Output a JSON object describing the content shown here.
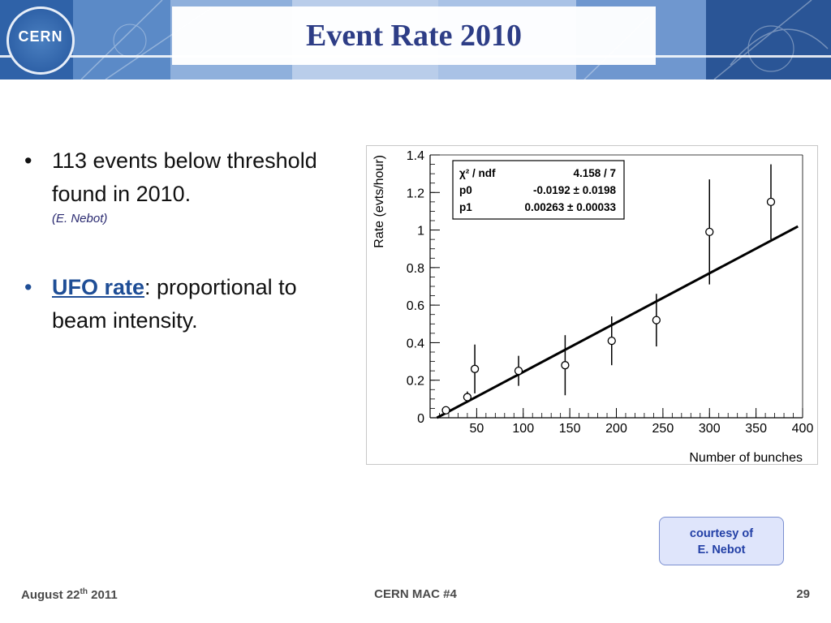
{
  "slide": {
    "title": "Event Rate 2010",
    "logo_text": "CERN"
  },
  "bullets": [
    {
      "text": "113 events below threshold found in 2010.",
      "credit": "(E. Nebot)"
    },
    {
      "highlight": "UFO rate",
      "text": ": proportional to beam intensity."
    }
  ],
  "courtesy": {
    "line1": "courtesy of",
    "line2": "E. Nebot"
  },
  "footer": {
    "date_prefix": "August 22",
    "date_sup": "th",
    "date_suffix": " 2011",
    "center": "CERN MAC #4",
    "page": "29"
  },
  "colors": {
    "title": "#2d3d86",
    "highlight": "#1f4e96",
    "courtesy_text": "#2340a6"
  },
  "chart_data": {
    "type": "scatter",
    "xlabel": "Number of bunches",
    "ylabel": "Rate (evts/hour)",
    "xlim": [
      0,
      400
    ],
    "ylim": [
      0,
      1.4
    ],
    "x_ticks": [
      50,
      100,
      150,
      200,
      250,
      300,
      350,
      400
    ],
    "y_ticks": [
      0,
      0.2,
      0.4,
      0.6,
      0.8,
      1,
      1.2,
      1.4
    ],
    "y_tick_labels": [
      "0",
      "0.2",
      "0.4",
      "0.6",
      "0.8",
      "1",
      "1.2",
      "1.4"
    ],
    "points": [
      {
        "x": 17,
        "y": 0.04,
        "err": 0.0
      },
      {
        "x": 40,
        "y": 0.11,
        "err": 0.03
      },
      {
        "x": 48,
        "y": 0.26,
        "err": 0.13
      },
      {
        "x": 95,
        "y": 0.25,
        "err": 0.08
      },
      {
        "x": 145,
        "y": 0.28,
        "err": 0.16
      },
      {
        "x": 195,
        "y": 0.41,
        "err": 0.13
      },
      {
        "x": 243,
        "y": 0.52,
        "err": 0.14
      },
      {
        "x": 300,
        "y": 0.99,
        "err": 0.28
      },
      {
        "x": 366,
        "y": 1.15,
        "err": 0.2
      }
    ],
    "fit": {
      "p0": -0.0192,
      "p1": 0.00263,
      "x_range": [
        7.3,
        395
      ]
    },
    "stats": [
      {
        "label": "χ² / ndf",
        "value": "4.158 / 7"
      },
      {
        "label": "p0",
        "value": "-0.0192 ± 0.0198"
      },
      {
        "label": "p1",
        "value": "0.00263 ± 0.00033"
      }
    ]
  }
}
